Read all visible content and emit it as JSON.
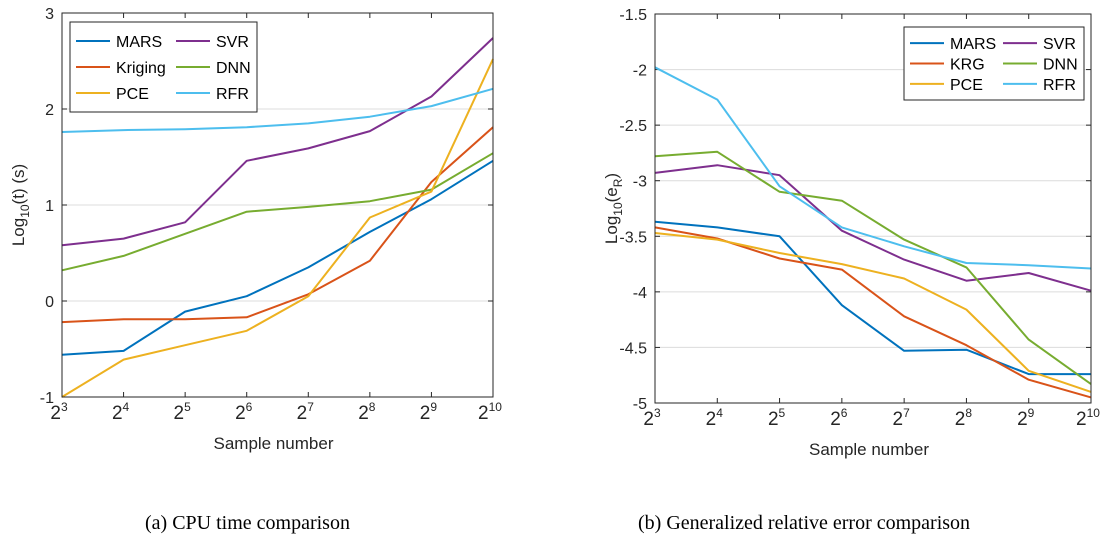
{
  "charts": [
    {
      "caption": "(a)  CPU time comparison",
      "chart_data": {
        "type": "line",
        "xlabel": "Sample number",
        "ylabel_base": "Log",
        "ylabel_sub": "10",
        "ylabel_rest": "(t) (s)",
        "x": [
          3,
          4,
          5,
          6,
          7,
          8,
          9,
          10
        ],
        "x_tick_base": "2",
        "ylim": [
          -1,
          3
        ],
        "yticks": [
          -1,
          0,
          1,
          2,
          3
        ],
        "grid": "horizontal",
        "legend_placement": "top-left",
        "series": [
          {
            "name": "MARS",
            "color": "#0072BD",
            "values": [
              -0.56,
              -0.52,
              -0.11,
              0.05,
              0.35,
              0.72,
              1.06,
              1.46
            ]
          },
          {
            "name": "SVR",
            "color": "#7E2F8E",
            "values": [
              0.58,
              0.65,
              0.82,
              1.46,
              1.59,
              1.77,
              2.13,
              2.74
            ]
          },
          {
            "name": "Kriging",
            "color": "#D95319",
            "values": [
              -0.22,
              -0.19,
              -0.19,
              -0.17,
              0.07,
              0.42,
              1.24,
              1.81
            ]
          },
          {
            "name": "DNN",
            "color": "#77AC30",
            "values": [
              0.32,
              0.47,
              0.7,
              0.93,
              0.98,
              1.04,
              1.16,
              1.54
            ]
          },
          {
            "name": "PCE",
            "color": "#EDB120",
            "values": [
              -1.0,
              -0.61,
              -0.46,
              -0.31,
              0.05,
              0.87,
              1.14,
              2.52
            ]
          },
          {
            "name": "RFR",
            "color": "#4DBEEE",
            "values": [
              1.76,
              1.78,
              1.79,
              1.81,
              1.85,
              1.92,
              2.03,
              2.21
            ]
          }
        ]
      }
    },
    {
      "caption": "(b)  Generalized relative error comparison",
      "chart_data": {
        "type": "line",
        "xlabel": "Sample number",
        "ylabel_base": "Log",
        "ylabel_sub": "10",
        "ylabel_rest": "(e",
        "ylabel_sub2": "R",
        "ylabel_end": ")",
        "x": [
          3,
          4,
          5,
          6,
          7,
          8,
          9,
          10
        ],
        "x_tick_base": "2",
        "ylim": [
          -5,
          -1.5
        ],
        "yticks": [
          -5,
          -4.5,
          -4,
          -3.5,
          -3,
          -2.5,
          -2,
          -1.5
        ],
        "grid": "horizontal",
        "legend_placement": "top-right",
        "series": [
          {
            "name": "MARS",
            "color": "#0072BD",
            "values": [
              -3.37,
              -3.42,
              -3.5,
              -4.12,
              -4.53,
              -4.52,
              -4.74,
              -4.74
            ]
          },
          {
            "name": "SVR",
            "color": "#7E2F8E",
            "values": [
              -2.93,
              -2.86,
              -2.95,
              -3.45,
              -3.71,
              -3.9,
              -3.83,
              -3.99
            ]
          },
          {
            "name": "KRG",
            "color": "#D95319",
            "values": [
              -3.42,
              -3.52,
              -3.7,
              -3.8,
              -4.22,
              -4.48,
              -4.79,
              -4.95
            ]
          },
          {
            "name": "DNN",
            "color": "#77AC30",
            "values": [
              -2.78,
              -2.74,
              -3.1,
              -3.18,
              -3.53,
              -3.78,
              -4.43,
              -4.83
            ]
          },
          {
            "name": "PCE",
            "color": "#EDB120",
            "values": [
              -3.47,
              -3.53,
              -3.65,
              -3.75,
              -3.88,
              -4.16,
              -4.71,
              -4.9
            ]
          },
          {
            "name": "RFR",
            "color": "#4DBEEE",
            "values": [
              -1.98,
              -2.27,
              -3.05,
              -3.42,
              -3.59,
              -3.74,
              -3.76,
              -3.79
            ]
          }
        ]
      }
    }
  ]
}
